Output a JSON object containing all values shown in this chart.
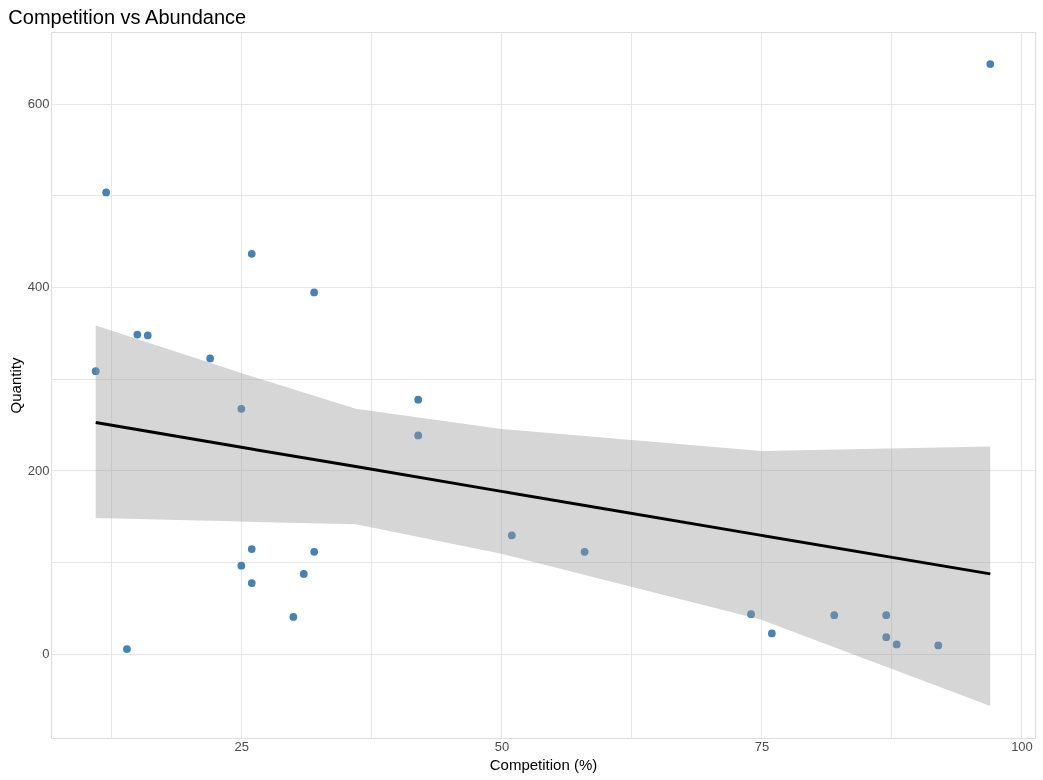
{
  "chart_data": {
    "type": "scatter",
    "title": "Competition vs Abundance",
    "xlabel": "Competition (%)",
    "ylabel": "Quantity",
    "xlim": [
      6.7,
      101.3
    ],
    "ylim": [
      -92,
      678
    ],
    "xticks": [
      {
        "value": 12.5,
        "label": null
      },
      25,
      {
        "value": 37.5,
        "label": null
      },
      50,
      {
        "value": 62.5,
        "label": null
      },
      75,
      {
        "value": 87.5,
        "label": null
      },
      100
    ],
    "yticks": [
      0,
      {
        "value": 100,
        "label": null
      },
      200,
      {
        "value": 300,
        "label": null
      },
      400,
      {
        "value": 500,
        "label": null
      },
      600
    ],
    "grid": true,
    "marker": "circle",
    "series": [
      {
        "color": "#4682b4",
        "x": [
          12,
          11,
          15,
          16,
          22,
          26,
          32,
          25,
          42,
          42,
          26,
          32,
          25,
          26,
          31,
          30,
          14,
          51,
          58,
          74,
          76,
          82,
          87,
          87,
          88,
          92,
          97
        ],
        "values": [
          503,
          308,
          348,
          347,
          322,
          436,
          394,
          267,
          277,
          238,
          114,
          111,
          96,
          77,
          87,
          40,
          5,
          129,
          111,
          43,
          22,
          42,
          42,
          18,
          10,
          9,
          643
        ]
      },
      {
        "type": "line",
        "marker": "none",
        "color": "#000000",
        "x": [
          11,
          25,
          36,
          50,
          75,
          97
        ],
        "values": [
          252,
          225,
          204,
          177,
          129,
          87
        ],
        "lower": [
          148,
          144,
          141,
          109,
          37,
          -57
        ],
        "upper": [
          358,
          306,
          267,
          245,
          221,
          226
        ]
      }
    ]
  }
}
